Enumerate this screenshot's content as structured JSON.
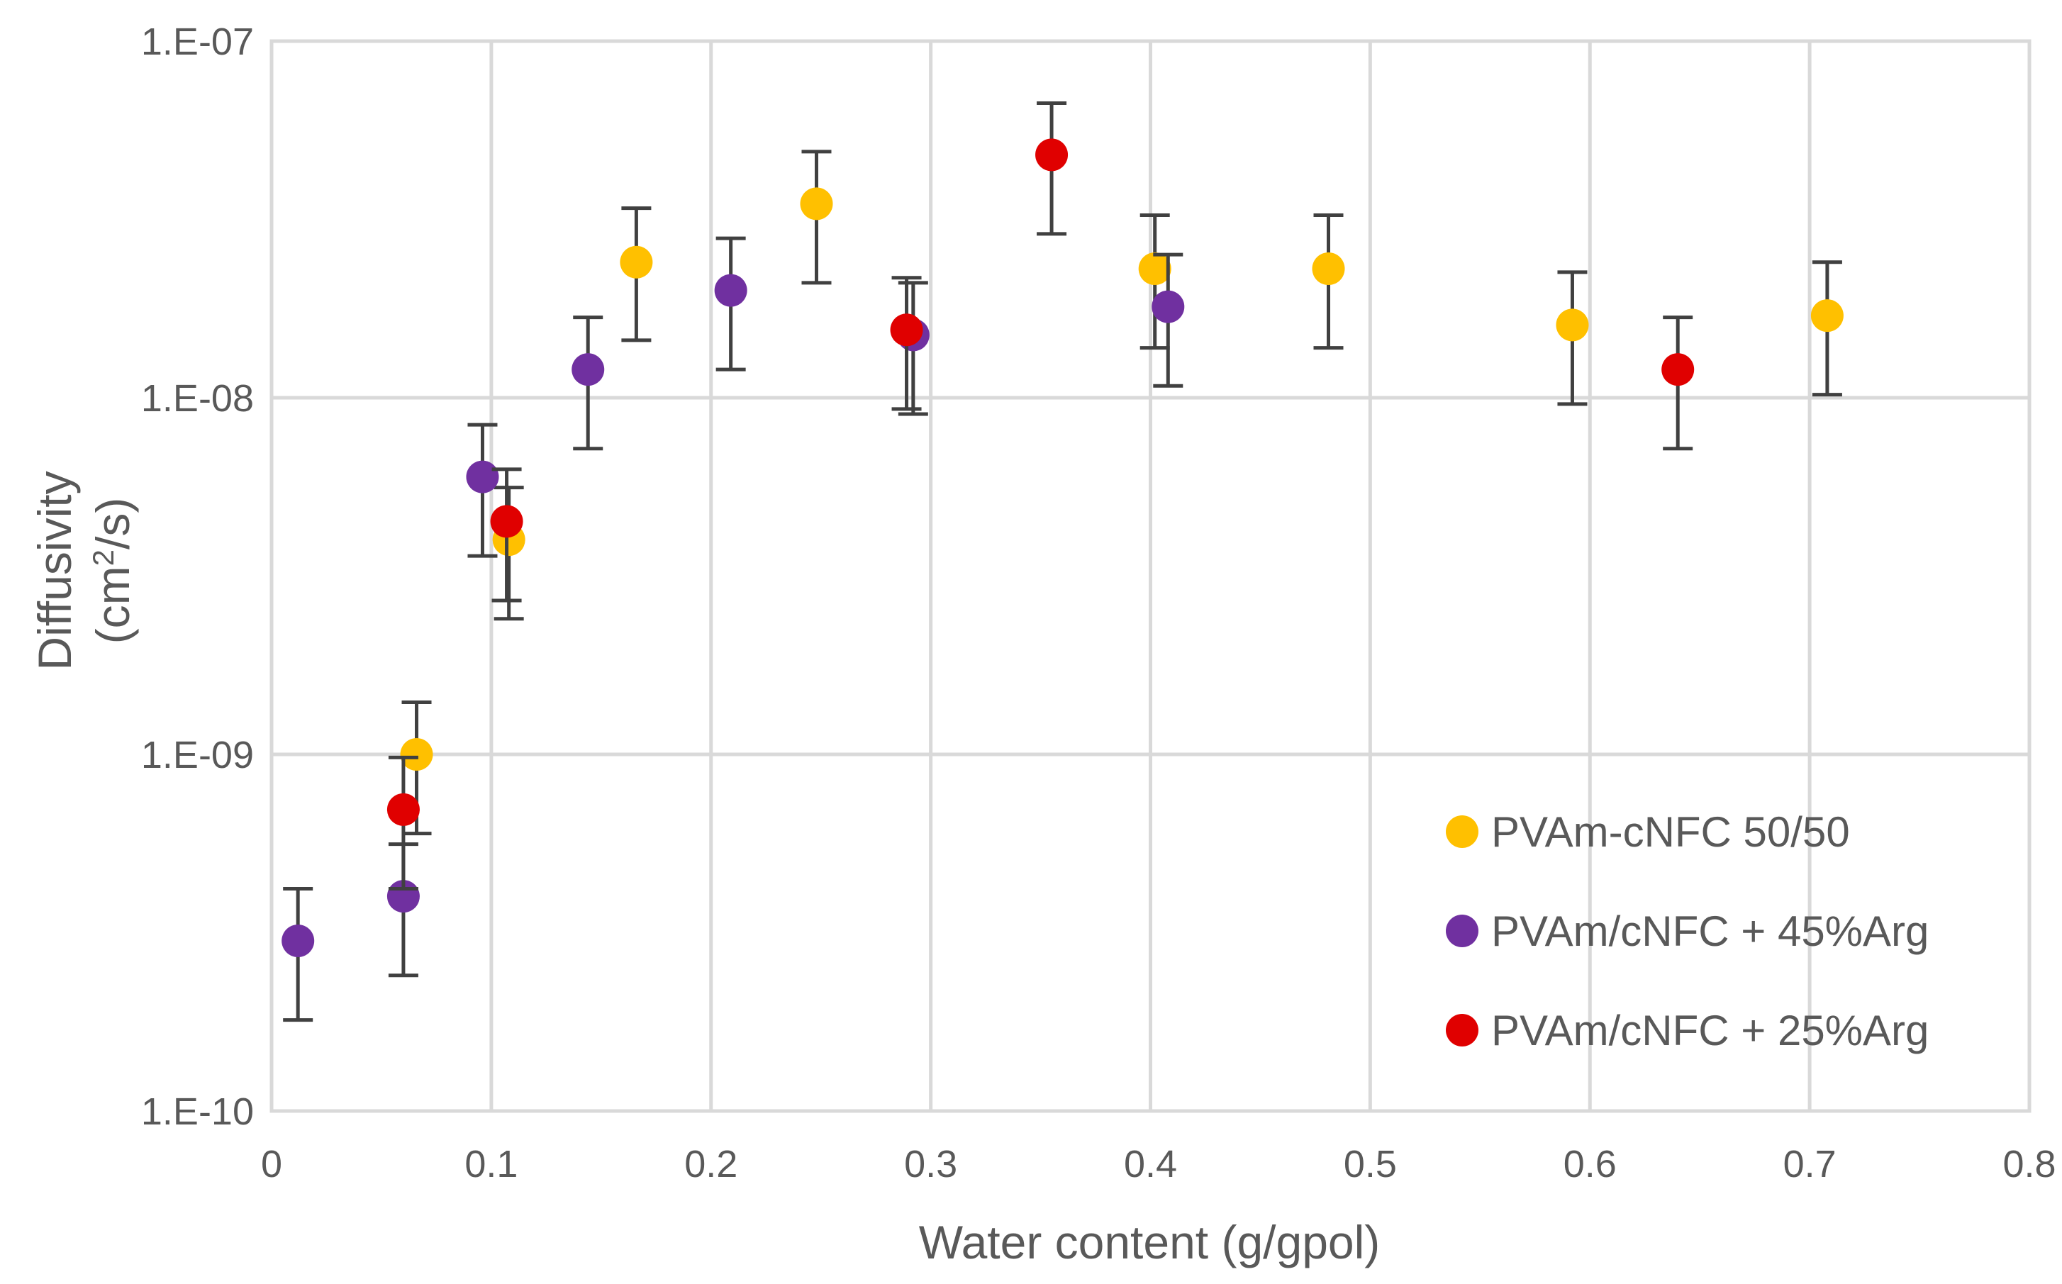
{
  "chart_data": {
    "type": "scatter",
    "title": "",
    "xlabel": "Water content (g/gpol)",
    "ylabel_line1": "Diffusivity",
    "ylabel_line2_prefix": "(cm",
    "ylabel_line2_sup": "2",
    "ylabel_line2_suffix": "/s)",
    "xlim": [
      0,
      0.8
    ],
    "ylim": [
      1e-10,
      1e-07
    ],
    "y_scale": "log",
    "x_ticks": [
      {
        "value": 0,
        "label": "0"
      },
      {
        "value": 0.1,
        "label": "0.1"
      },
      {
        "value": 0.2,
        "label": "0.2"
      },
      {
        "value": 0.3,
        "label": "0.3"
      },
      {
        "value": 0.4,
        "label": "0.4"
      },
      {
        "value": 0.5,
        "label": "0.5"
      },
      {
        "value": 0.6,
        "label": "0.6"
      },
      {
        "value": 0.7,
        "label": "0.7"
      },
      {
        "value": 0.8,
        "label": "0.8"
      }
    ],
    "y_ticks": [
      {
        "value": 1e-10,
        "label": "1.E-10"
      },
      {
        "value": 1e-09,
        "label": "1.E-09"
      },
      {
        "value": 1e-08,
        "label": "1.E-08"
      },
      {
        "value": 1e-07,
        "label": "1.E-07"
      }
    ],
    "grid": true,
    "legend_position": "bottom-right",
    "series": [
      {
        "name": "PVAm-cNFC 50/50",
        "color": "#FFC000",
        "points": [
          {
            "x": 0.066,
            "y": 1e-09,
            "lo": 6e-10,
            "hi": 1.4e-09
          },
          {
            "x": 0.108,
            "y": 4e-09,
            "lo": 2.4e-09,
            "hi": 5.6e-09
          },
          {
            "x": 0.166,
            "y": 2.4e-08,
            "lo": 1.45e-08,
            "hi": 3.4e-08
          },
          {
            "x": 0.248,
            "y": 3.5e-08,
            "lo": 2.1e-08,
            "hi": 4.9e-08
          },
          {
            "x": 0.402,
            "y": 2.3e-08,
            "lo": 1.38e-08,
            "hi": 3.25e-08
          },
          {
            "x": 0.481,
            "y": 2.3e-08,
            "lo": 1.38e-08,
            "hi": 3.25e-08
          },
          {
            "x": 0.592,
            "y": 1.6e-08,
            "lo": 9.6e-09,
            "hi": 2.25e-08
          },
          {
            "x": 0.708,
            "y": 1.7e-08,
            "lo": 1.02e-08,
            "hi": 2.4e-08
          }
        ]
      },
      {
        "name": "PVAm/cNFC + 45%Arg",
        "color": "#7030A0",
        "points": [
          {
            "x": 0.012,
            "y": 3e-10,
            "lo": 1.8e-10,
            "hi": 4.2e-10
          },
          {
            "x": 0.06,
            "y": 4e-10,
            "lo": 2.4e-10,
            "hi": 5.6e-10
          },
          {
            "x": 0.096,
            "y": 6e-09,
            "lo": 3.6e-09,
            "hi": 8.4e-09
          },
          {
            "x": 0.144,
            "y": 1.2e-08,
            "lo": 7.2e-09,
            "hi": 1.68e-08
          },
          {
            "x": 0.209,
            "y": 2e-08,
            "lo": 1.2e-08,
            "hi": 2.8e-08
          },
          {
            "x": 0.292,
            "y": 1.5e-08,
            "lo": 9e-09,
            "hi": 2.1e-08
          },
          {
            "x": 0.408,
            "y": 1.8e-08,
            "lo": 1.08e-08,
            "hi": 2.52e-08
          }
        ]
      },
      {
        "name": "PVAm/cNFC + 25%Arg",
        "color": "#E00000",
        "points": [
          {
            "x": 0.06,
            "y": 7e-10,
            "lo": 4.2e-10,
            "hi": 9.8e-10
          },
          {
            "x": 0.107,
            "y": 4.5e-09,
            "lo": 2.7e-09,
            "hi": 6.3e-09
          },
          {
            "x": 0.289,
            "y": 1.55e-08,
            "lo": 9.3e-09,
            "hi": 2.17e-08
          },
          {
            "x": 0.355,
            "y": 4.8e-08,
            "lo": 2.88e-08,
            "hi": 6.7e-08
          },
          {
            "x": 0.64,
            "y": 1.2e-08,
            "lo": 7.2e-09,
            "hi": 1.68e-08
          }
        ]
      }
    ]
  }
}
